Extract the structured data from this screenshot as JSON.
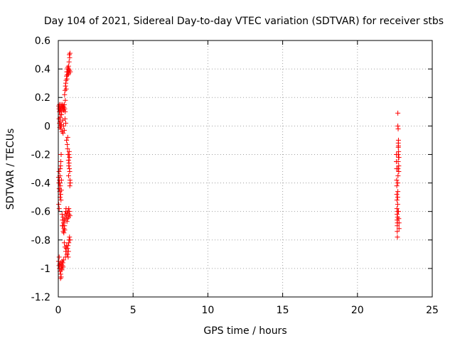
{
  "chart_data": {
    "type": "scatter",
    "title": "Day 104 of 2021, Sidereal Day-to-day VTEC variation (SDTVAR) for receiver stbs",
    "xlabel": "GPS time / hours",
    "ylabel": "SDTVAR / TECUs",
    "xlim": [
      0,
      25
    ],
    "ylim": [
      -1.2,
      0.6
    ],
    "xticks": [
      "0",
      "5",
      "10",
      "15",
      "20",
      "25"
    ],
    "yticks": [
      "-1.2",
      "-1",
      "-0.8",
      "-0.6",
      "-0.4",
      "-0.2",
      "0",
      "0.2",
      "0.4",
      "0.6"
    ],
    "grid": true,
    "marker": "+",
    "color": "#ff0000",
    "series": [
      {
        "points": [
          [
            0.03,
            0.14
          ],
          [
            0.05,
            0.12
          ],
          [
            0.07,
            0.1
          ],
          [
            0.08,
            0.15
          ],
          [
            0.1,
            0.13
          ],
          [
            0.12,
            0.11
          ],
          [
            0.14,
            0.08
          ],
          [
            0.16,
            0.12
          ],
          [
            0.18,
            0.15
          ],
          [
            0.2,
            0.14
          ],
          [
            0.22,
            0.1
          ],
          [
            0.25,
            0.13
          ],
          [
            0.28,
            0.15
          ],
          [
            0.3,
            0.12
          ],
          [
            0.33,
            0.14
          ],
          [
            0.36,
            0.11
          ],
          [
            0.38,
            0.13
          ],
          [
            0.4,
            0.15
          ],
          [
            0.43,
            0.12
          ],
          [
            0.46,
            0.1
          ],
          [
            0.05,
            0.05
          ],
          [
            0.08,
            0.02
          ],
          [
            0.1,
            -0.01
          ],
          [
            0.13,
            0.03
          ],
          [
            0.15,
            0.0
          ],
          [
            0.18,
            -0.02
          ],
          [
            0.2,
            0.01
          ],
          [
            0.25,
            -0.04
          ],
          [
            0.3,
            0.04
          ],
          [
            0.35,
            0.0
          ],
          [
            0.4,
            -0.03
          ],
          [
            0.45,
            0.05
          ],
          [
            0.5,
            0.02
          ],
          [
            0.12,
            0.06
          ],
          [
            0.22,
            0.08
          ],
          [
            0.32,
            -0.05
          ],
          [
            0.42,
            0.22
          ],
          [
            0.45,
            0.25
          ],
          [
            0.48,
            0.28
          ],
          [
            0.5,
            0.3
          ],
          [
            0.52,
            0.32
          ],
          [
            0.55,
            0.35
          ],
          [
            0.57,
            0.38
          ],
          [
            0.6,
            0.36
          ],
          [
            0.62,
            0.4
          ],
          [
            0.65,
            0.38
          ],
          [
            0.68,
            0.42
          ],
          [
            0.7,
            0.4
          ],
          [
            0.72,
            0.45
          ],
          [
            0.74,
            0.5
          ],
          [
            0.76,
            0.48
          ],
          [
            0.78,
            0.51
          ],
          [
            0.8,
            0.38
          ],
          [
            0.7,
            0.37
          ],
          [
            0.75,
            0.39
          ],
          [
            0.47,
            0.18
          ],
          [
            0.53,
            0.26
          ],
          [
            0.58,
            0.33
          ],
          [
            0.63,
            0.41
          ],
          [
            0.66,
            0.36
          ],
          [
            0.55,
            -0.1
          ],
          [
            0.6,
            -0.13
          ],
          [
            0.62,
            -0.16
          ],
          [
            0.65,
            -0.2
          ],
          [
            0.68,
            -0.24
          ],
          [
            0.7,
            -0.28
          ],
          [
            0.72,
            -0.26
          ],
          [
            0.74,
            -0.3
          ],
          [
            0.76,
            -0.32
          ],
          [
            0.78,
            -0.38
          ],
          [
            0.8,
            -0.4
          ],
          [
            0.75,
            -0.22
          ],
          [
            0.73,
            -0.18
          ],
          [
            0.69,
            -0.35
          ],
          [
            0.77,
            -0.42
          ],
          [
            0.63,
            -0.08
          ],
          [
            0.71,
            -0.2
          ],
          [
            0.02,
            -0.36
          ],
          [
            0.04,
            -0.4
          ],
          [
            0.06,
            -0.44
          ],
          [
            0.08,
            -0.38
          ],
          [
            0.1,
            -0.46
          ],
          [
            0.12,
            -0.5
          ],
          [
            0.14,
            -0.42
          ],
          [
            0.16,
            -0.48
          ],
          [
            0.18,
            -0.52
          ],
          [
            0.2,
            -0.45
          ],
          [
            0.03,
            -0.55
          ],
          [
            0.06,
            -0.58
          ],
          [
            0.09,
            -0.4
          ],
          [
            0.11,
            -0.35
          ],
          [
            0.13,
            -0.3
          ],
          [
            0.15,
            -0.28
          ],
          [
            0.05,
            -0.32
          ],
          [
            0.17,
            -0.25
          ],
          [
            0.19,
            -0.2
          ],
          [
            0.21,
            -0.38
          ],
          [
            0.25,
            -0.62
          ],
          [
            0.28,
            -0.66
          ],
          [
            0.3,
            -0.7
          ],
          [
            0.32,
            -0.64
          ],
          [
            0.35,
            -0.68
          ],
          [
            0.38,
            -0.72
          ],
          [
            0.4,
            -0.66
          ],
          [
            0.42,
            -0.7
          ],
          [
            0.45,
            -0.62
          ],
          [
            0.48,
            -0.65
          ],
          [
            0.5,
            -0.6
          ],
          [
            0.52,
            -0.58
          ],
          [
            0.55,
            -0.63
          ],
          [
            0.58,
            -0.67
          ],
          [
            0.6,
            -0.61
          ],
          [
            0.62,
            -0.65
          ],
          [
            0.65,
            -0.6
          ],
          [
            0.68,
            -0.64
          ],
          [
            0.7,
            -0.58
          ],
          [
            0.72,
            -0.62
          ],
          [
            0.75,
            -0.6
          ],
          [
            0.78,
            -0.63
          ],
          [
            0.33,
            -0.74
          ],
          [
            0.37,
            -0.75
          ],
          [
            0.43,
            -0.73
          ],
          [
            0.27,
            -0.7
          ],
          [
            0.4,
            -0.82
          ],
          [
            0.45,
            -0.85
          ],
          [
            0.5,
            -0.88
          ],
          [
            0.55,
            -0.84
          ],
          [
            0.6,
            -0.9
          ],
          [
            0.62,
            -0.86
          ],
          [
            0.65,
            -0.84
          ],
          [
            0.68,
            -0.88
          ],
          [
            0.7,
            -0.82
          ],
          [
            0.72,
            -0.8
          ],
          [
            0.75,
            -0.78
          ],
          [
            0.78,
            -0.8
          ],
          [
            0.48,
            -0.92
          ],
          [
            0.58,
            -0.9
          ],
          [
            0.66,
            -0.92
          ],
          [
            0.53,
            -0.86
          ],
          [
            0.02,
            -0.95
          ],
          [
            0.05,
            -0.98
          ],
          [
            0.08,
            -1.0
          ],
          [
            0.1,
            -0.97
          ],
          [
            0.12,
            -1.02
          ],
          [
            0.14,
            -0.96
          ],
          [
            0.16,
            -1.04
          ],
          [
            0.18,
            -0.99
          ],
          [
            0.2,
            -1.0
          ],
          [
            0.22,
            -0.97
          ],
          [
            0.25,
            -0.95
          ],
          [
            0.28,
            -0.98
          ],
          [
            0.3,
            -0.96
          ],
          [
            0.32,
            -0.99
          ],
          [
            0.35,
            -0.94
          ],
          [
            0.15,
            -1.07
          ],
          [
            0.06,
            -0.92
          ],
          [
            0.19,
            -1.06
          ],
          [
            0.24,
            -1.01
          ],
          [
            22.6,
            -0.2
          ],
          [
            22.6,
            -0.25
          ],
          [
            22.62,
            -0.3
          ],
          [
            22.62,
            -0.38
          ],
          [
            22.63,
            -0.42
          ],
          [
            22.63,
            -0.48
          ],
          [
            22.64,
            -0.52
          ],
          [
            22.64,
            -0.58
          ],
          [
            22.65,
            -0.62
          ],
          [
            22.65,
            -0.66
          ],
          [
            22.66,
            -0.7
          ],
          [
            22.66,
            -0.74
          ],
          [
            22.67,
            -0.78
          ],
          [
            22.67,
            -0.68
          ],
          [
            22.68,
            -0.64
          ],
          [
            22.68,
            -0.6
          ],
          [
            22.69,
            -0.55
          ],
          [
            22.69,
            -0.5
          ],
          [
            22.7,
            -0.46
          ],
          [
            22.7,
            -0.4
          ],
          [
            22.71,
            -0.35
          ],
          [
            22.71,
            -0.3
          ],
          [
            22.72,
            -0.25
          ],
          [
            22.72,
            -0.2
          ],
          [
            22.73,
            -0.15
          ],
          [
            22.73,
            -0.12
          ],
          [
            22.74,
            -0.1
          ],
          [
            22.74,
            -0.14
          ],
          [
            22.75,
            -0.18
          ],
          [
            22.75,
            -0.22
          ],
          [
            22.76,
            -0.28
          ],
          [
            22.76,
            -0.32
          ],
          [
            22.77,
            -0.22
          ],
          [
            22.78,
            -0.68
          ],
          [
            22.78,
            -0.72
          ],
          [
            22.7,
            0.0
          ],
          [
            22.72,
            -0.02
          ],
          [
            22.7,
            0.09
          ],
          [
            22.74,
            -0.6
          ],
          [
            22.76,
            -0.65
          ]
        ]
      }
    ]
  }
}
